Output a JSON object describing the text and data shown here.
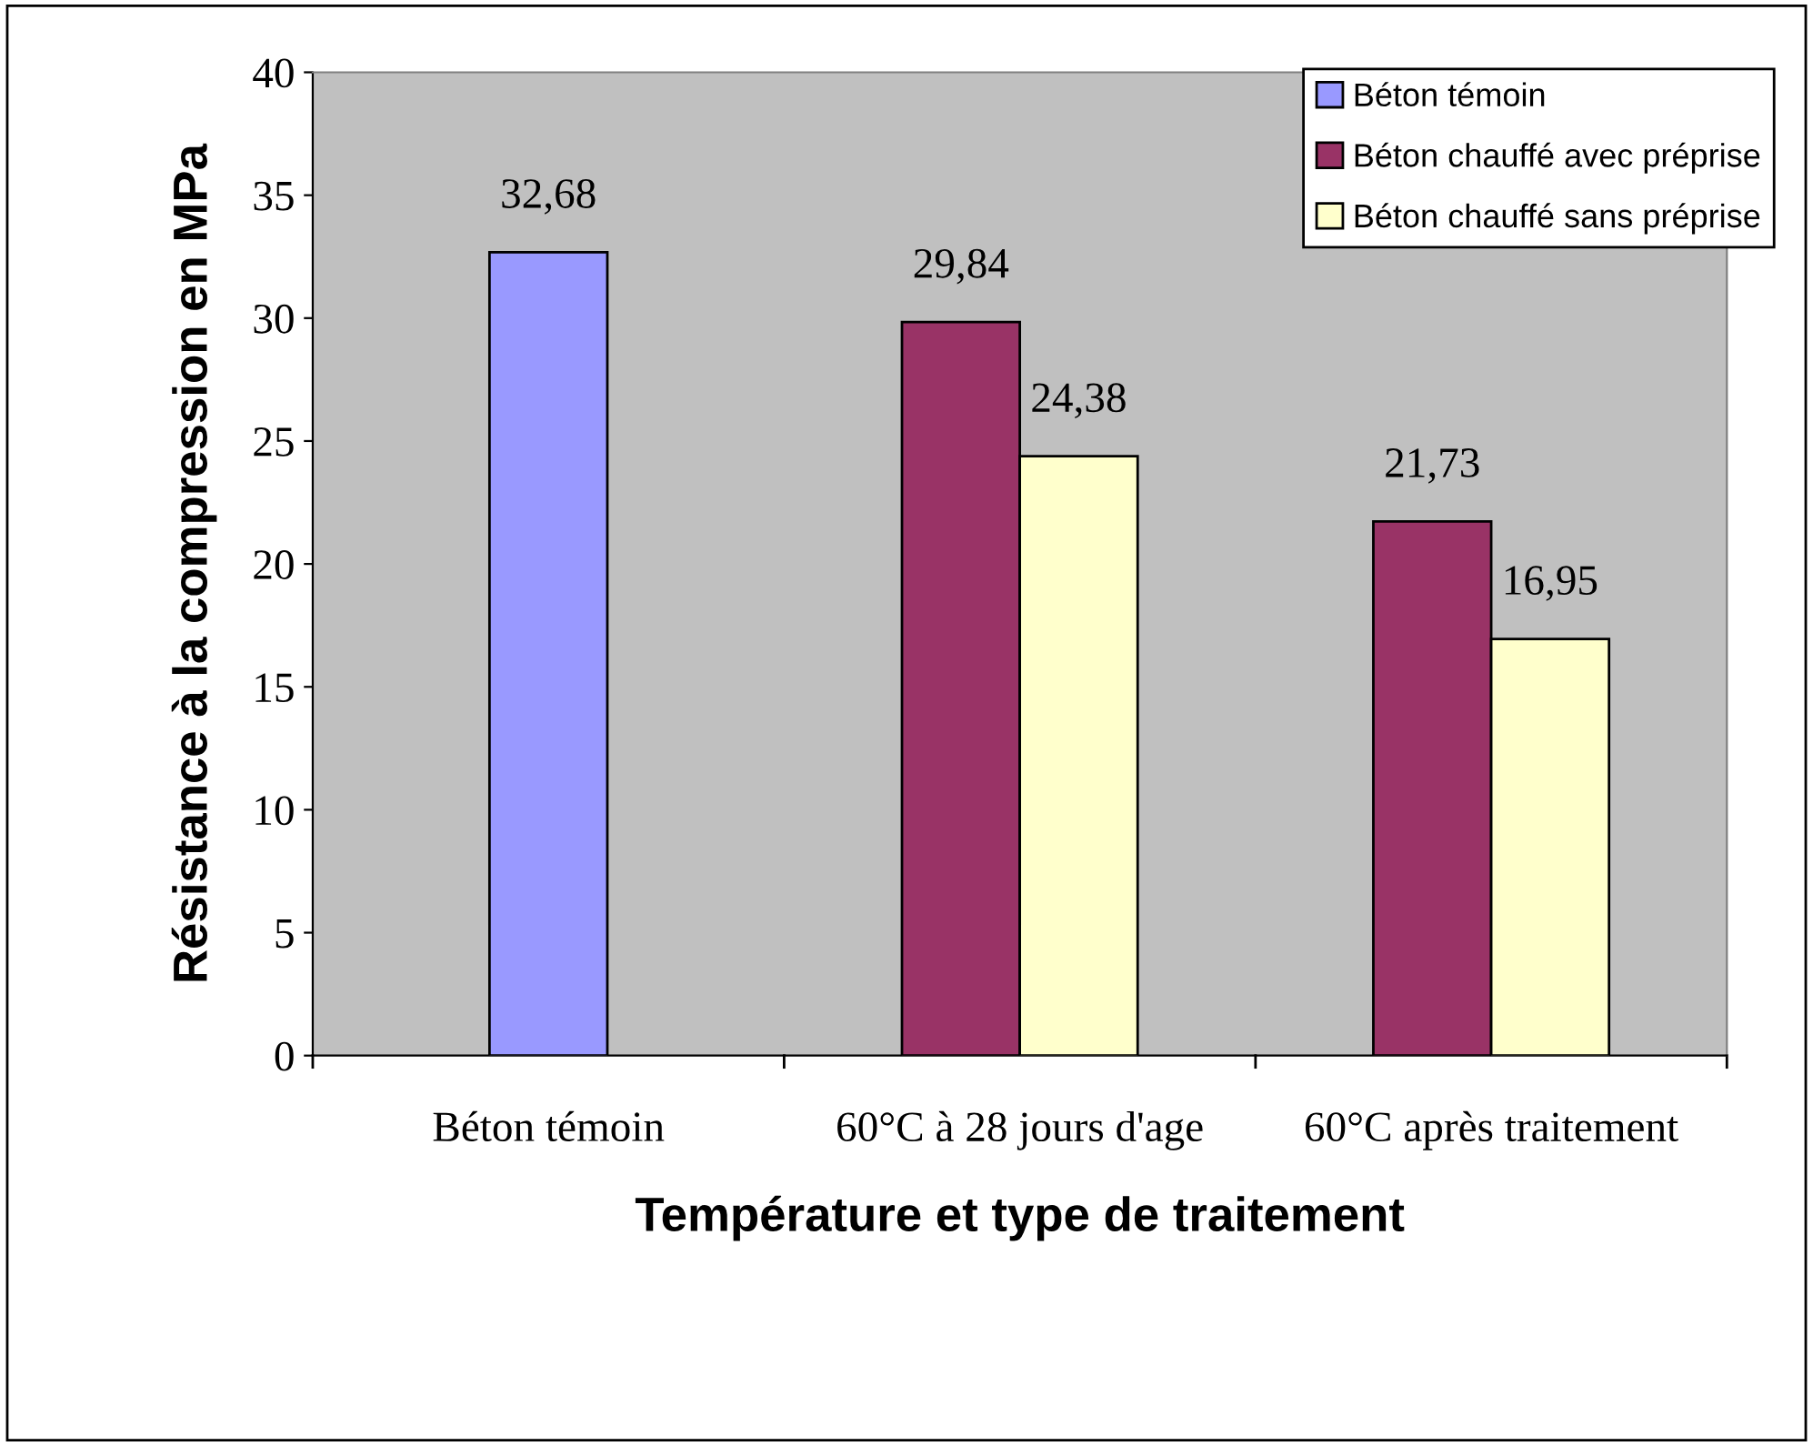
{
  "chart_data": {
    "type": "bar",
    "xlabel": "Température et type de traitement",
    "ylabel": "Résistance à la compression en MPa",
    "categories": [
      "Béton témoin",
      "60°C à 28 jours d'age",
      "60°C après traitement"
    ],
    "series": [
      {
        "name": "Béton témoin",
        "color": "#9999ff",
        "values": [
          32.68,
          null,
          null
        ],
        "value_labels": [
          "32,68",
          null,
          null
        ]
      },
      {
        "name": "Béton chauffé avec préprise",
        "color": "#993366",
        "values": [
          null,
          29.84,
          21.73
        ],
        "value_labels": [
          null,
          "29,84",
          "21,73"
        ]
      },
      {
        "name": "Béton chauffé sans préprise",
        "color": "#ffffcc",
        "values": [
          null,
          24.38,
          16.95
        ],
        "value_labels": [
          null,
          "24,38",
          "16,95"
        ]
      }
    ],
    "ylim": [
      0,
      40
    ],
    "yticks": [
      0,
      5,
      10,
      15,
      20,
      25,
      30,
      35,
      40
    ],
    "grid": false,
    "legend": "top right"
  }
}
